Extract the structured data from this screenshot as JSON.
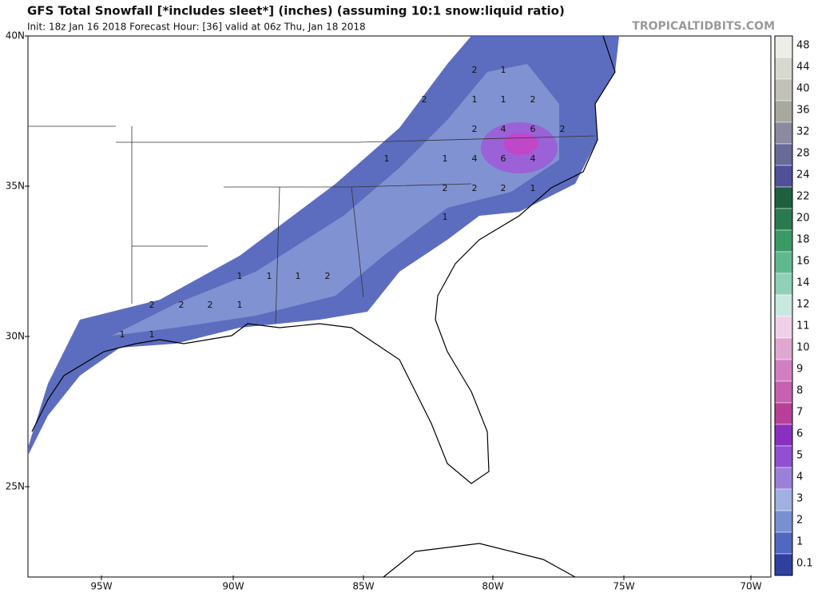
{
  "header": {
    "title": "GFS Total Snowfall [*includes sleet*] (inches) (assuming 10:1 snow:liquid ratio)",
    "subtitle": "Init: 18z Jan 16 2018   Forecast Hour: [36]   valid at 06z Thu, Jan 18 2018",
    "brand": "TROPICALTIDBITS.COM"
  },
  "map": {
    "lat_labels": [
      "40N",
      "35N",
      "30N",
      "25N"
    ],
    "lon_labels": [
      "95W",
      "90W",
      "85W",
      "80W",
      "75W",
      "70W"
    ],
    "contour_labels": [
      "2",
      "1",
      "2",
      "1",
      "1",
      "2",
      "2",
      "4",
      "6",
      "2",
      "1",
      "1",
      "4",
      "6",
      "4",
      "2",
      "2",
      "2",
      "1",
      "1",
      "1",
      "1",
      "1",
      "2",
      "2",
      "2",
      "2",
      "1",
      "1",
      "1"
    ]
  },
  "colorbar": {
    "labels": [
      48,
      44,
      40,
      36,
      32,
      28,
      24,
      22,
      20,
      18,
      16,
      14,
      12,
      11,
      10,
      9,
      8,
      7,
      6,
      5,
      4,
      3,
      2,
      1,
      0.1
    ],
    "colors": [
      "#eeeee8",
      "#d8d8d0",
      "#c0c0b8",
      "#a8a8a0",
      "#8a8aa0",
      "#6a6a98",
      "#505098",
      "#1e6040",
      "#2a7a50",
      "#3a9a66",
      "#60b890",
      "#90d0b8",
      "#c8e8e0",
      "#f0d0e8",
      "#e0a8d0",
      "#d080c0",
      "#c860b0",
      "#b84098",
      "#8a30c0",
      "#9050d0",
      "#9a80d8",
      "#a0b0e0",
      "#7890d0",
      "#5068c0",
      "#3040a0"
    ]
  }
}
